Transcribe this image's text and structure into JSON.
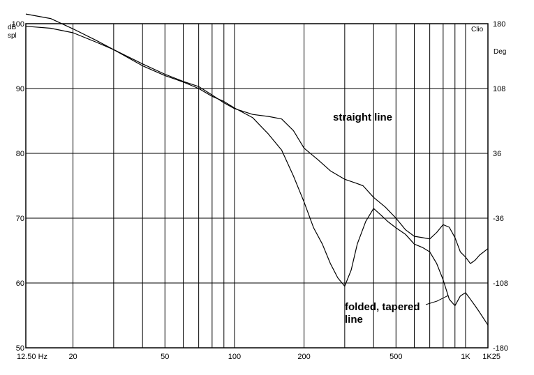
{
  "chart_data": {
    "type": "line",
    "x_scale": "log",
    "xlim": [
      12.5,
      1250
    ],
    "ylim": [
      50,
      100
    ],
    "y2lim": [
      -180,
      180
    ],
    "grid": true,
    "x_gridlines": [
      20,
      30,
      40,
      50,
      60,
      70,
      80,
      90,
      100,
      200,
      300,
      400,
      500,
      600,
      700,
      800,
      900,
      1000
    ],
    "x_ticks": [
      {
        "value": 12.5,
        "label": "12.50 Hz"
      },
      {
        "value": 20,
        "label": "20"
      },
      {
        "value": 50,
        "label": "50"
      },
      {
        "value": 100,
        "label": "100"
      },
      {
        "value": 200,
        "label": "200"
      },
      {
        "value": 500,
        "label": "500"
      },
      {
        "value": 1000,
        "label": "1K"
      },
      {
        "value": 1250,
        "label": "1K25"
      }
    ],
    "y_ticks": [
      {
        "value": 100,
        "label": "100"
      },
      {
        "value": 90,
        "label": "90"
      },
      {
        "value": 80,
        "label": "80"
      },
      {
        "value": 70,
        "label": "70"
      },
      {
        "value": 60,
        "label": "60"
      },
      {
        "value": 50,
        "label": "50"
      }
    ],
    "y2_ticks": [
      {
        "value": 180,
        "label": "180"
      },
      {
        "value": 108,
        "label": "108"
      },
      {
        "value": 36,
        "label": "36"
      },
      {
        "value": -36,
        "label": "-36"
      },
      {
        "value": -108,
        "label": "-108"
      },
      {
        "value": -180,
        "label": "-180"
      }
    ],
    "ylabel_line1": "dB",
    "ylabel_line2": "spl",
    "y2label_top": "Clio",
    "y2label": "Deg",
    "series": [
      {
        "id": "straight",
        "color": "#000000",
        "points": [
          [
            12.5,
            99.6
          ],
          [
            16,
            99.3
          ],
          [
            20,
            98.6
          ],
          [
            25,
            97.2
          ],
          [
            30,
            96.0
          ],
          [
            40,
            93.8
          ],
          [
            50,
            92.2
          ],
          [
            60,
            91.1
          ],
          [
            70,
            90.3
          ],
          [
            80,
            89.0
          ],
          [
            90,
            87.8
          ],
          [
            100,
            86.9
          ],
          [
            120,
            86.0
          ],
          [
            140,
            85.7
          ],
          [
            160,
            85.3
          ],
          [
            180,
            83.5
          ],
          [
            200,
            80.8
          ],
          [
            230,
            79.0
          ],
          [
            260,
            77.3
          ],
          [
            300,
            76.0
          ],
          [
            330,
            75.5
          ],
          [
            360,
            75.0
          ],
          [
            400,
            73.2
          ],
          [
            450,
            71.7
          ],
          [
            500,
            70.0
          ],
          [
            550,
            68.2
          ],
          [
            600,
            67.2
          ],
          [
            650,
            67.0
          ],
          [
            700,
            66.8
          ],
          [
            750,
            67.8
          ],
          [
            800,
            69.0
          ],
          [
            850,
            68.6
          ],
          [
            900,
            67.0
          ],
          [
            950,
            64.8
          ],
          [
            1000,
            64.0
          ],
          [
            1050,
            63.0
          ],
          [
            1100,
            63.5
          ],
          [
            1150,
            64.3
          ],
          [
            1250,
            65.3
          ]
        ]
      },
      {
        "id": "folded",
        "color": "#000000",
        "points": [
          [
            12.5,
            101.5
          ],
          [
            16,
            100.8
          ],
          [
            20,
            99.2
          ],
          [
            25,
            97.5
          ],
          [
            30,
            96.0
          ],
          [
            40,
            93.5
          ],
          [
            50,
            92.0
          ],
          [
            60,
            91.0
          ],
          [
            70,
            90.0
          ],
          [
            80,
            88.8
          ],
          [
            90,
            88.0
          ],
          [
            100,
            87.0
          ],
          [
            120,
            85.5
          ],
          [
            140,
            83.0
          ],
          [
            160,
            80.5
          ],
          [
            180,
            76.5
          ],
          [
            200,
            72.5
          ],
          [
            220,
            68.5
          ],
          [
            240,
            66.0
          ],
          [
            260,
            63.0
          ],
          [
            280,
            60.8
          ],
          [
            300,
            59.5
          ],
          [
            320,
            62.0
          ],
          [
            340,
            66.0
          ],
          [
            370,
            69.5
          ],
          [
            400,
            71.5
          ],
          [
            430,
            70.5
          ],
          [
            460,
            69.5
          ],
          [
            500,
            68.5
          ],
          [
            550,
            67.5
          ],
          [
            600,
            66.0
          ],
          [
            650,
            65.5
          ],
          [
            700,
            64.8
          ],
          [
            750,
            63.0
          ],
          [
            800,
            60.5
          ],
          [
            850,
            57.5
          ],
          [
            900,
            56.5
          ],
          [
            950,
            58.0
          ],
          [
            1000,
            58.5
          ],
          [
            1050,
            57.5
          ],
          [
            1100,
            56.5
          ],
          [
            1150,
            55.5
          ],
          [
            1250,
            53.5
          ]
        ]
      }
    ],
    "annotations": [
      {
        "id": "straight",
        "text": "straight line"
      },
      {
        "id": "folded-1",
        "text": "folded, tapered"
      },
      {
        "id": "folded-2",
        "text": "line"
      }
    ]
  }
}
